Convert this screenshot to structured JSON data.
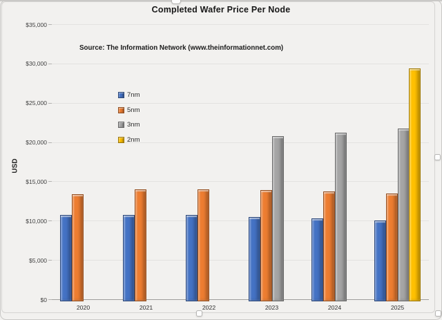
{
  "chart_data": {
    "type": "bar",
    "title": "Completed Wafer Price Per Node",
    "annotation": "Source: The Information Network (www.theinformationnet.com)",
    "ylabel": "USD",
    "xlabel": "",
    "ylim": [
      0,
      35000
    ],
    "ytick_step": 5000,
    "ytick_labels": [
      "$35,000",
      "$30,000",
      "$25,000",
      "$20,000",
      "$15,000",
      "$10,000",
      "$5,000",
      "$0"
    ],
    "grid": true,
    "legend_position": "upper-left-inside",
    "categories": [
      "2020",
      "2021",
      "2022",
      "2023",
      "2024",
      "2025"
    ],
    "series": [
      {
        "name": "7nm",
        "color": "#4472C4",
        "values": [
          10700,
          10700,
          10700,
          10500,
          10300,
          10000
        ]
      },
      {
        "name": "5nm",
        "color": "#ED7D31",
        "values": [
          13400,
          14000,
          14000,
          13900,
          13700,
          13500
        ]
      },
      {
        "name": "3nm",
        "color": "#A5A5A5",
        "values": [
          null,
          null,
          null,
          20800,
          21200,
          21700
        ]
      },
      {
        "name": "2nm",
        "color": "#FFC000",
        "values": [
          null,
          null,
          null,
          null,
          null,
          29400
        ]
      }
    ]
  }
}
